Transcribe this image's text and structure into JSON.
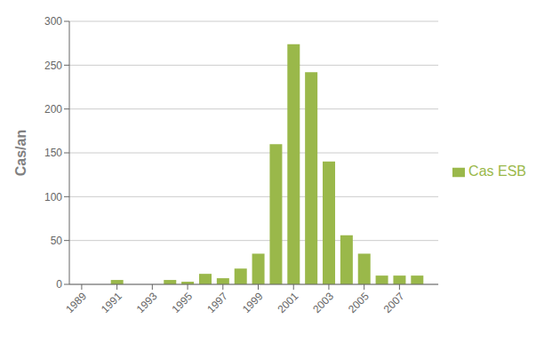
{
  "chart_data": {
    "type": "bar",
    "ylabel": "Cas/an",
    "x": [
      1989,
      1990,
      1991,
      1992,
      1993,
      1994,
      1995,
      1996,
      1997,
      1998,
      1999,
      2000,
      2001,
      2002,
      2003,
      2004,
      2005,
      2006,
      2007,
      2008
    ],
    "series": [
      {
        "name": "Cas ESB",
        "color": "#9ab84a",
        "values": [
          0,
          0,
          5,
          0,
          0,
          5,
          3,
          12,
          7,
          18,
          35,
          160,
          274,
          242,
          140,
          56,
          35,
          10,
          10,
          10
        ]
      }
    ],
    "xlim": [
      1988.3,
      2009.2
    ],
    "xticks": [
      1989,
      1991,
      1993,
      1995,
      1997,
      1999,
      2001,
      2003,
      2005,
      2007
    ],
    "ylim": [
      0,
      300
    ],
    "yticks": [
      0,
      50,
      100,
      150,
      200,
      250,
      300
    ],
    "grid": true,
    "legend": "right"
  }
}
